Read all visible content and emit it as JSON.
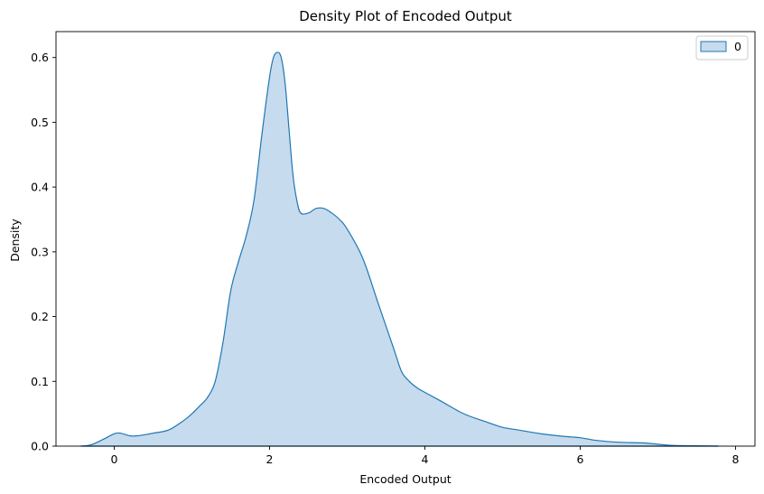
{
  "chart_data": {
    "type": "area",
    "title": "Density Plot of Encoded Output",
    "xlabel": "Encoded Output",
    "ylabel": "Density",
    "xlim": [
      -0.75,
      8.25
    ],
    "ylim": [
      0,
      0.64
    ],
    "xticks": [
      0,
      2,
      4,
      6,
      8
    ],
    "yticks": [
      0.0,
      0.1,
      0.2,
      0.3,
      0.4,
      0.5,
      0.6
    ],
    "xtick_labels": [
      "0",
      "2",
      "4",
      6,
      "8"
    ],
    "ytick_labels": [
      "0.0",
      "0.1",
      "0.2",
      "0.3",
      "0.4",
      "0.5",
      "0.6"
    ],
    "grid": false,
    "legend": {
      "position": "top-right",
      "entries": [
        "0"
      ]
    },
    "colors": {
      "line": "#1f77b4",
      "fill": "#c6dbed"
    },
    "series": [
      {
        "name": "0",
        "x": [
          -0.43,
          -0.3,
          -0.15,
          0.0,
          0.08,
          0.2,
          0.3,
          0.5,
          0.7,
          0.9,
          1.0,
          1.1,
          1.2,
          1.3,
          1.4,
          1.5,
          1.6,
          1.7,
          1.8,
          1.9,
          2.0,
          2.05,
          2.1,
          2.15,
          2.2,
          2.25,
          2.3,
          2.35,
          2.4,
          2.5,
          2.6,
          2.7,
          2.8,
          2.9,
          3.0,
          3.2,
          3.4,
          3.6,
          3.7,
          3.8,
          3.9,
          4.0,
          4.2,
          4.5,
          4.8,
          5.0,
          5.2,
          5.5,
          5.8,
          6.0,
          6.2,
          6.5,
          6.8,
          7.0,
          7.2,
          7.5,
          7.78
        ],
        "y": [
          0.0,
          0.002,
          0.01,
          0.019,
          0.02,
          0.016,
          0.016,
          0.02,
          0.025,
          0.04,
          0.05,
          0.062,
          0.075,
          0.1,
          0.16,
          0.24,
          0.285,
          0.325,
          0.38,
          0.48,
          0.57,
          0.6,
          0.608,
          0.6,
          0.56,
          0.49,
          0.42,
          0.38,
          0.36,
          0.36,
          0.367,
          0.367,
          0.36,
          0.35,
          0.335,
          0.29,
          0.22,
          0.15,
          0.115,
          0.1,
          0.09,
          0.083,
          0.07,
          0.05,
          0.037,
          0.029,
          0.025,
          0.019,
          0.015,
          0.013,
          0.009,
          0.006,
          0.005,
          0.003,
          0.001,
          0.0005,
          0.0
        ]
      }
    ]
  }
}
